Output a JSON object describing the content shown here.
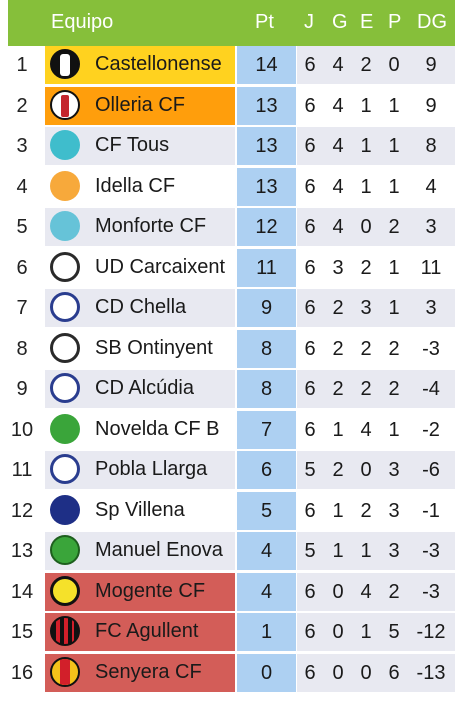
{
  "header": {
    "team": "Equipo",
    "pt": "Pt",
    "j": "J",
    "g": "G",
    "e": "E",
    "p": "P",
    "dg": "DG"
  },
  "colors": {
    "header_bg": "#86bf3a",
    "points_bg": "#add0f2",
    "promotion": "#ffd21f",
    "playoff": "#ff9e0c",
    "relegation": "#d35d58",
    "accent_top": "#2e9be0",
    "accent_top_red": "#e2552d"
  },
  "rows": [
    {
      "pos": "1",
      "team": "Castellonense",
      "pt": "14",
      "j": "6",
      "g": "4",
      "e": "2",
      "p": "0",
      "dg": "9",
      "badge": "castellon",
      "zone": "gold"
    },
    {
      "pos": "2",
      "team": "Olleria CF",
      "pt": "13",
      "j": "6",
      "g": "4",
      "e": "1",
      "p": "1",
      "dg": "9",
      "badge": "olleria",
      "zone": "orange"
    },
    {
      "pos": "3",
      "team": "CF Tous",
      "pt": "13",
      "j": "6",
      "g": "4",
      "e": "1",
      "p": "1",
      "dg": "8",
      "badge": "tous",
      "zone": ""
    },
    {
      "pos": "4",
      "team": "Idella CF",
      "pt": "13",
      "j": "6",
      "g": "4",
      "e": "1",
      "p": "1",
      "dg": "4",
      "badge": "idella",
      "zone": "alt"
    },
    {
      "pos": "5",
      "team": "Monforte CF",
      "pt": "12",
      "j": "6",
      "g": "4",
      "e": "0",
      "p": "2",
      "dg": "3",
      "badge": "monforte",
      "zone": ""
    },
    {
      "pos": "6",
      "team": "UD Carcaixent",
      "pt": "11",
      "j": "6",
      "g": "3",
      "e": "2",
      "p": "1",
      "dg": "11",
      "badge": "carcaixent",
      "zone": "alt"
    },
    {
      "pos": "7",
      "team": "CD Chella",
      "pt": "9",
      "j": "6",
      "g": "2",
      "e": "3",
      "p": "1",
      "dg": "3",
      "badge": "chella",
      "zone": ""
    },
    {
      "pos": "8",
      "team": "SB Ontinyent",
      "pt": "8",
      "j": "6",
      "g": "2",
      "e": "2",
      "p": "2",
      "dg": "-3",
      "badge": "ontinyent",
      "zone": "alt"
    },
    {
      "pos": "9",
      "team": "CD Alcúdia",
      "pt": "8",
      "j": "6",
      "g": "2",
      "e": "2",
      "p": "2",
      "dg": "-4",
      "badge": "alcudia",
      "zone": ""
    },
    {
      "pos": "10",
      "team": "Novelda CF B",
      "pt": "7",
      "j": "6",
      "g": "1",
      "e": "4",
      "p": "1",
      "dg": "-2",
      "badge": "novelda",
      "zone": "alt"
    },
    {
      "pos": "11",
      "team": "Pobla Llarga",
      "pt": "6",
      "j": "5",
      "g": "2",
      "e": "0",
      "p": "3",
      "dg": "-6",
      "badge": "pobla",
      "zone": ""
    },
    {
      "pos": "12",
      "team": "Sp Villena",
      "pt": "5",
      "j": "6",
      "g": "1",
      "e": "2",
      "p": "3",
      "dg": "-1",
      "badge": "villena",
      "zone": "alt"
    },
    {
      "pos": "13",
      "team": "Manuel Enova",
      "pt": "4",
      "j": "5",
      "g": "1",
      "e": "1",
      "p": "3",
      "dg": "-3",
      "badge": "enova",
      "zone": ""
    },
    {
      "pos": "14",
      "team": "Mogente CF",
      "pt": "4",
      "j": "6",
      "g": "0",
      "e": "4",
      "p": "2",
      "dg": "-3",
      "badge": "mogente",
      "zone": "red"
    },
    {
      "pos": "15",
      "team": "FC Agullent",
      "pt": "1",
      "j": "6",
      "g": "0",
      "e": "1",
      "p": "5",
      "dg": "-12",
      "badge": "agullent",
      "zone": "red"
    },
    {
      "pos": "16",
      "team": "Senyera CF",
      "pt": "0",
      "j": "6",
      "g": "0",
      "e": "0",
      "p": "6",
      "dg": "-13",
      "badge": "senyera",
      "zone": "red"
    }
  ]
}
